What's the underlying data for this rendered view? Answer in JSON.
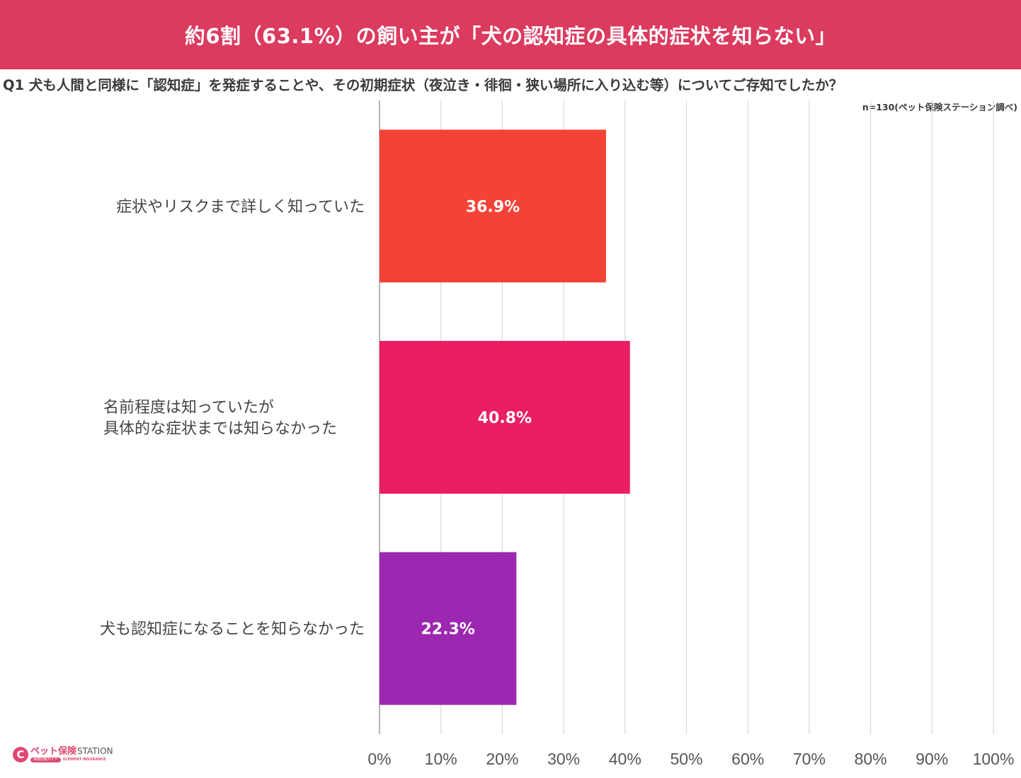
{
  "header": {
    "title": "約6割（63.1%）の飼い主が「犬の認知症の具体的症状を知らない」",
    "background_color": "#db3b5f"
  },
  "question": "Q1 犬も人間と同様に「認知症」を発症することや、その初期症状（夜泣き・徘徊・狭い場所に入り込む等）についてご存知でしたか？",
  "sample_note": "n=130(ペット保険ステーション調べ)",
  "chart_data": {
    "type": "bar",
    "orientation": "horizontal",
    "categories": [
      [
        "症状やリスクまで詳しく知っていた"
      ],
      [
        "名前程度は知っていたが",
        "具体的な症状までは知らなかった"
      ],
      [
        "犬も認知症になることを知らなかった"
      ]
    ],
    "values": [
      36.9,
      40.8,
      22.3
    ],
    "value_labels": [
      "36.9%",
      "40.8%",
      "22.3%"
    ],
    "colors": [
      "#f44336",
      "#e91e63",
      "#9c27b0"
    ],
    "xlim": [
      0,
      100
    ],
    "x_ticks": [
      0,
      10,
      20,
      30,
      40,
      50,
      60,
      70,
      80,
      90,
      100
    ],
    "x_tick_labels": [
      "0%",
      "10%",
      "20%",
      "30%",
      "40%",
      "50%",
      "60%",
      "70%",
      "80%",
      "90%",
      "100%"
    ],
    "grid": true,
    "legend": false
  },
  "logo": {
    "mark": "C",
    "name_jp": "ペット保険",
    "name_en": "STATION",
    "tagline": "保険比較サイト",
    "company": "ELEMENT INSURANCE"
  }
}
